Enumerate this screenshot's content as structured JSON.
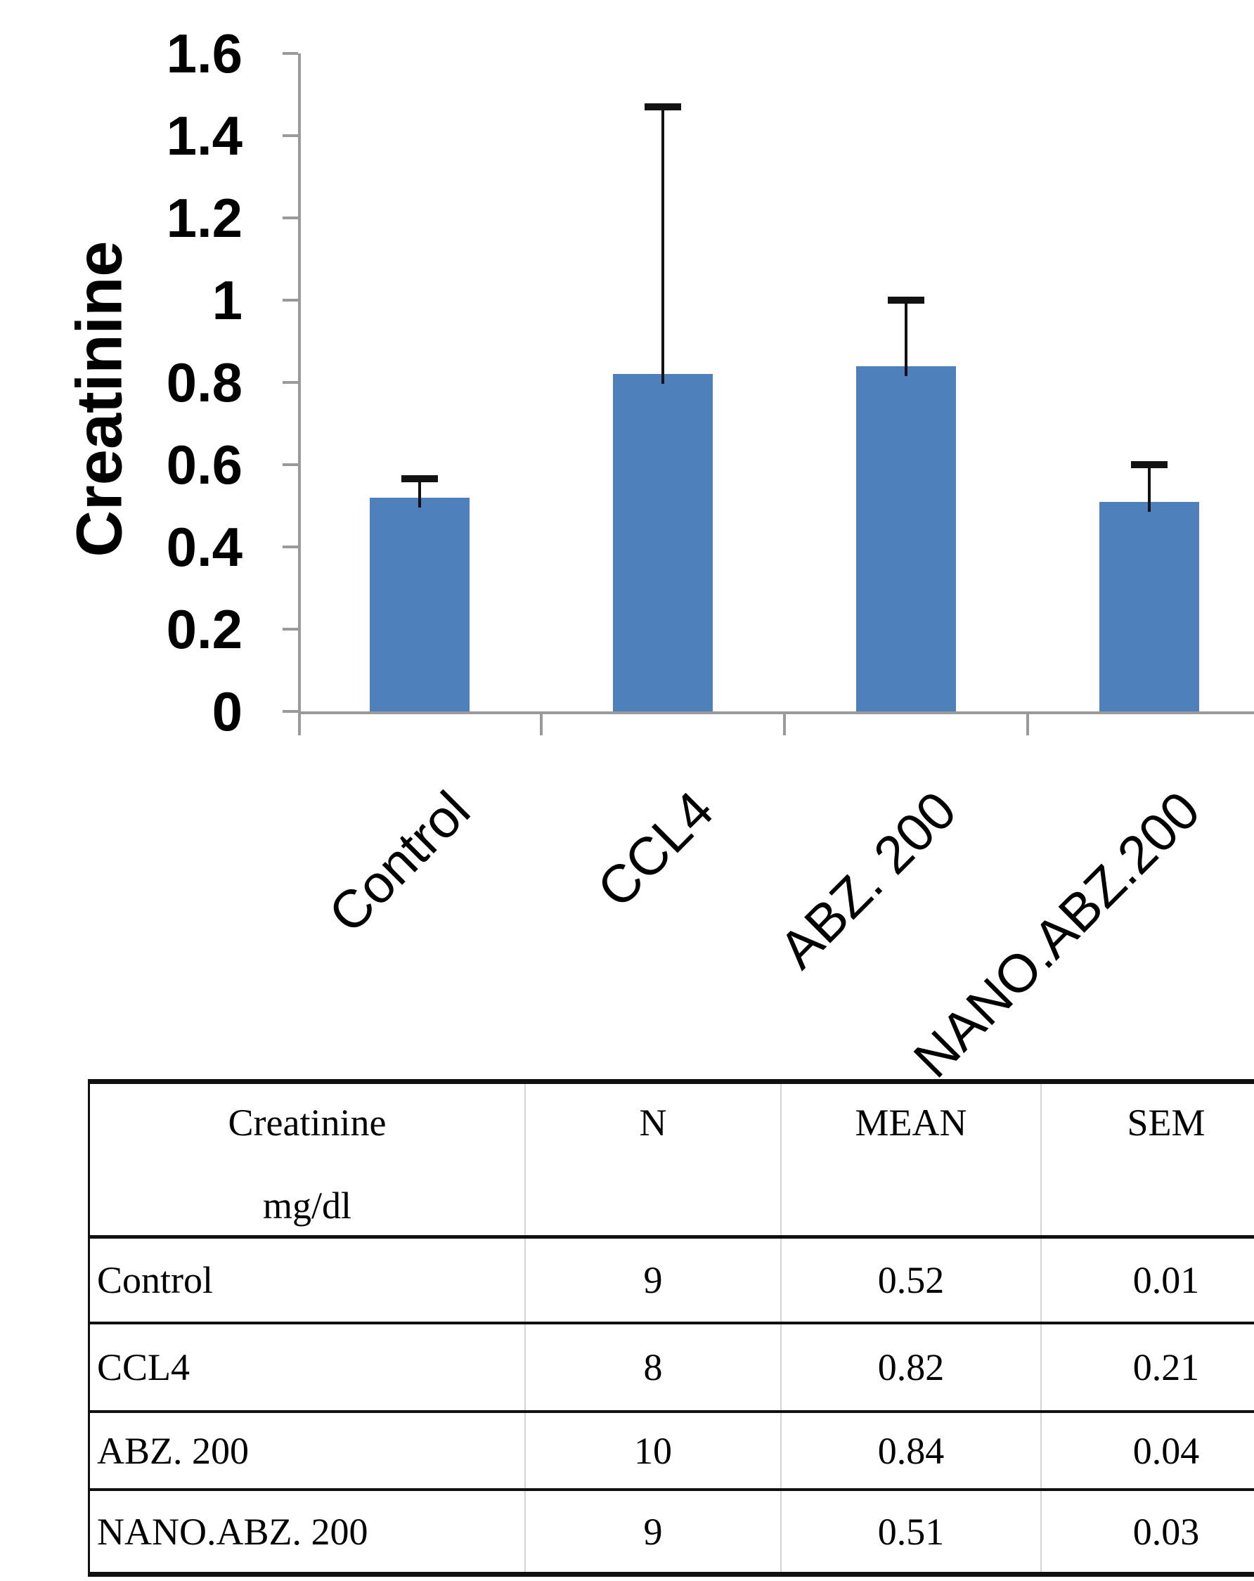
{
  "chart_data": {
    "type": "bar",
    "title": "",
    "ylabel": "Creatinine",
    "xlabel": "",
    "categories": [
      "Control",
      "CCL4",
      "ABZ. 200",
      "NANO.ABZ.200"
    ],
    "values": [
      0.52,
      0.82,
      0.84,
      0.51
    ],
    "error_bar_tops": [
      0.565,
      1.47,
      1.0,
      0.6
    ],
    "error_caps": "upper-only",
    "ylim": [
      0,
      1.6
    ],
    "ytick_step": 0.2,
    "yticks": [
      "1.6",
      "1.4",
      "1.2",
      "1",
      "0.8",
      "0.6",
      "0.4",
      "0.2",
      "0"
    ],
    "grid": "off",
    "legend": "none",
    "bar_color": "#4e80bc",
    "axis_color": "#9a9a9a",
    "error_color": "#121212"
  },
  "table": {
    "header": {
      "col1": [
        "Creatinine",
        "mg/dl"
      ],
      "col2": "N",
      "col3": "MEAN",
      "col4": "SEM"
    },
    "rows": [
      {
        "group": "Control",
        "n": "9",
        "mean": "0.52",
        "sem": "0.01"
      },
      {
        "group": "CCL4",
        "n": "8",
        "mean": "0.82",
        "sem": "0.21"
      },
      {
        "group": "ABZ. 200",
        "n": "10",
        "mean": "0.84",
        "sem": "0.04"
      },
      {
        "group": "NANO.ABZ. 200",
        "n": "9",
        "mean": "0.51",
        "sem": "0.03"
      }
    ]
  }
}
